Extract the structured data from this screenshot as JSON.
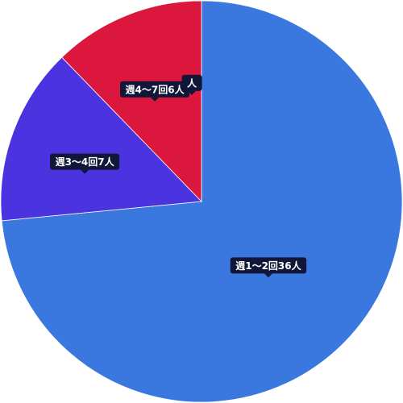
{
  "chart_data": {
    "type": "pie",
    "title": "",
    "slices": [
      {
        "label": "週1〜2回",
        "value": 36,
        "unit": "人",
        "tooltip": "週1〜2回36人",
        "color": "#3a78e0"
      },
      {
        "label": "週3〜4回",
        "value": 7,
        "unit": "人",
        "tooltip": "週3〜4回7人",
        "color": "#4b33e0"
      },
      {
        "label": "週4〜7回",
        "value": 6,
        "unit": "人",
        "tooltip": "週4〜7回6人",
        "color": "#dc173d"
      }
    ],
    "extra_tooltip": "人",
    "legend": "none",
    "start": "top",
    "direction": "clockwise"
  },
  "colors": {
    "tooltip_bg": "#101738",
    "tooltip_text": "#ffffff",
    "slice_border": "#ffffff"
  }
}
